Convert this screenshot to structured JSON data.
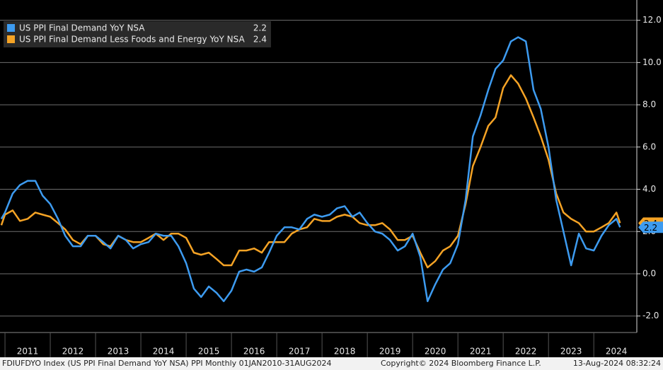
{
  "chart_data": {
    "type": "line",
    "x": [
      2010.92,
      2011.0,
      2011.17,
      2011.33,
      2011.5,
      2011.67,
      2011.83,
      2012.0,
      2012.17,
      2012.33,
      2012.5,
      2012.67,
      2012.83,
      2013.0,
      2013.17,
      2013.33,
      2013.5,
      2013.67,
      2013.83,
      2014.0,
      2014.17,
      2014.33,
      2014.5,
      2014.67,
      2014.83,
      2015.0,
      2015.17,
      2015.33,
      2015.5,
      2015.67,
      2015.83,
      2016.0,
      2016.17,
      2016.33,
      2016.5,
      2016.67,
      2016.83,
      2017.0,
      2017.17,
      2017.33,
      2017.5,
      2017.67,
      2017.83,
      2018.0,
      2018.17,
      2018.33,
      2018.5,
      2018.67,
      2018.83,
      2019.0,
      2019.17,
      2019.33,
      2019.5,
      2019.67,
      2019.83,
      2020.0,
      2020.17,
      2020.33,
      2020.5,
      2020.67,
      2020.83,
      2021.0,
      2021.17,
      2021.33,
      2021.5,
      2021.67,
      2021.83,
      2022.0,
      2022.17,
      2022.33,
      2022.5,
      2022.67,
      2022.83,
      2023.0,
      2023.17,
      2023.33,
      2023.5,
      2023.67,
      2023.83,
      2024.0,
      2024.17,
      2024.33,
      2024.5,
      2024.58
    ],
    "series": [
      {
        "name": "US PPI Final Demand YoY NSA",
        "color": "#3d9bf0",
        "last": 2.2,
        "values": [
          2.6,
          2.9,
          3.8,
          4.2,
          4.4,
          4.4,
          3.7,
          3.3,
          2.6,
          1.8,
          1.3,
          1.3,
          1.8,
          1.8,
          1.5,
          1.2,
          1.8,
          1.6,
          1.2,
          1.4,
          1.5,
          1.9,
          1.8,
          1.8,
          1.3,
          0.5,
          -0.7,
          -1.1,
          -0.6,
          -0.9,
          -1.3,
          -0.8,
          0.1,
          0.2,
          0.1,
          0.3,
          1.0,
          1.8,
          2.2,
          2.2,
          2.1,
          2.6,
          2.8,
          2.7,
          2.8,
          3.1,
          3.2,
          2.7,
          2.9,
          2.4,
          2.0,
          1.9,
          1.6,
          1.1,
          1.3,
          1.9,
          0.8,
          -1.3,
          -0.5,
          0.2,
          0.5,
          1.4,
          3.5,
          6.5,
          7.5,
          8.7,
          9.7,
          10.1,
          11.0,
          11.2,
          11.0,
          8.7,
          7.8,
          6.0,
          3.5,
          2.0,
          0.4,
          1.9,
          1.2,
          1.1,
          1.8,
          2.3,
          2.6,
          2.2
        ]
      },
      {
        "name": "US PPI Final Demand Less Foods and Energy YoY NSA",
        "color": "#f5a325",
        "last": 2.4,
        "values": [
          2.3,
          2.8,
          3.0,
          2.5,
          2.6,
          2.9,
          2.8,
          2.7,
          2.4,
          2.1,
          1.6,
          1.4,
          1.8,
          1.8,
          1.4,
          1.3,
          1.8,
          1.6,
          1.5,
          1.5,
          1.7,
          1.9,
          1.6,
          1.9,
          1.9,
          1.7,
          1.0,
          0.9,
          1.0,
          0.7,
          0.4,
          0.4,
          1.1,
          1.1,
          1.2,
          1.0,
          1.5,
          1.5,
          1.5,
          1.9,
          2.1,
          2.2,
          2.6,
          2.5,
          2.5,
          2.7,
          2.8,
          2.7,
          2.4,
          2.3,
          2.3,
          2.4,
          2.1,
          1.6,
          1.6,
          1.8,
          1.0,
          0.3,
          0.6,
          1.1,
          1.3,
          1.8,
          3.3,
          5.1,
          6.0,
          7.0,
          7.4,
          8.8,
          9.4,
          9.0,
          8.3,
          7.4,
          6.5,
          5.4,
          3.8,
          2.9,
          2.6,
          2.4,
          2.0,
          2.0,
          2.2,
          2.4,
          2.9,
          2.4
        ]
      }
    ],
    "xlim": [
      2010.89,
      2024.95
    ],
    "xticks": [
      2011,
      2012,
      2013,
      2014,
      2015,
      2016,
      2017,
      2018,
      2019,
      2020,
      2021,
      2022,
      2023,
      2024
    ],
    "ylim": [
      -2.78,
      12.96
    ],
    "yticks": [
      {
        "value": -2,
        "label": "-2.0"
      },
      {
        "value": 0,
        "label": "0.0"
      },
      {
        "value": 2,
        "label": "2.0"
      },
      {
        "value": 4,
        "label": "4.0"
      },
      {
        "value": 6,
        "label": "6.0"
      },
      {
        "value": 8,
        "label": "8.0"
      },
      {
        "value": 10,
        "label": "10.0"
      },
      {
        "value": 12,
        "label": "12.0"
      }
    ],
    "grid": true,
    "legend": "upper left",
    "footer": {
      "source": "FDIUFDYO Index (US PPI Final Demand YoY NSA) PPI  Monthly 01JAN2010-31AUG2024",
      "copyright": "Copyright© 2024 Bloomberg Finance L.P.",
      "timestamp": "13-Aug-2024 08:32:24"
    }
  }
}
